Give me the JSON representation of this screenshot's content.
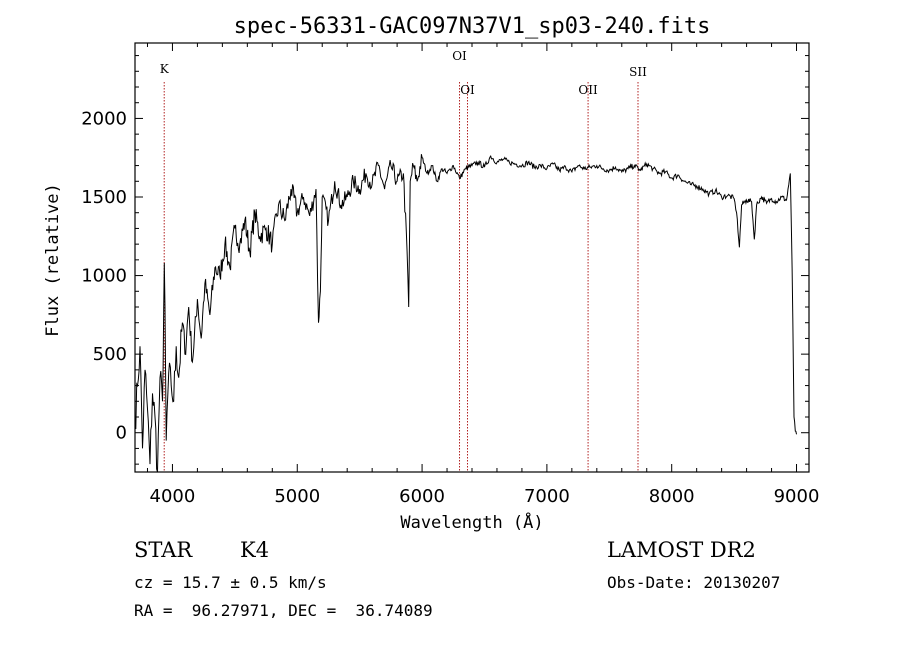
{
  "chart_data": {
    "type": "line",
    "title": "spec-56331-GAC097N37V1_sp03-240.fits",
    "xlabel": "Wavelength (Å)",
    "ylabel": "Flux (relative)",
    "xlim": [
      3700,
      9100
    ],
    "ylim": [
      -250,
      2480
    ],
    "xticks": [
      4000,
      5000,
      6000,
      7000,
      8000,
      9000
    ],
    "yticks": [
      0,
      500,
      1000,
      1500,
      2000
    ],
    "grid": false,
    "series": [
      {
        "x": [
          3700,
          3720,
          3740,
          3760,
          3780,
          3800,
          3820,
          3840,
          3860,
          3880,
          3900,
          3920,
          3935,
          3950,
          3970,
          3990,
          4010,
          4030,
          4050,
          4080,
          4100,
          4130,
          4160,
          4200,
          4230,
          4260,
          4300,
          4340,
          4380,
          4420,
          4460,
          4500,
          4540,
          4580,
          4620,
          4660,
          4700,
          4750,
          4800,
          4850,
          4900,
          4950,
          5000,
          5050,
          5100,
          5150,
          5170,
          5185,
          5200,
          5250,
          5300,
          5350,
          5400,
          5450,
          5500,
          5550,
          5600,
          5650,
          5700,
          5750,
          5800,
          5850,
          5880,
          5893,
          5905,
          5930,
          5960,
          6000,
          6040,
          6080,
          6120,
          6160,
          6200,
          6250,
          6300,
          6350,
          6400,
          6450,
          6500,
          6550,
          6600,
          6650,
          6700,
          6750,
          6800,
          6850,
          6900,
          6950,
          7000,
          7050,
          7100,
          7150,
          7200,
          7250,
          7300,
          7350,
          7400,
          7450,
          7500,
          7550,
          7600,
          7650,
          7700,
          7750,
          7800,
          7850,
          7900,
          7950,
          8000,
          8050,
          8100,
          8150,
          8200,
          8250,
          8300,
          8350,
          8400,
          8450,
          8500,
          8520,
          8542,
          8560,
          8600,
          8640,
          8662,
          8680,
          8720,
          8760,
          8800,
          8840,
          8880,
          8920,
          8950,
          8965,
          8980,
          8990,
          9000
        ],
        "y": [
          50,
          300,
          550,
          -100,
          400,
          150,
          -200,
          250,
          100,
          -250,
          350,
          200,
          1080,
          -50,
          380,
          300,
          200,
          550,
          350,
          700,
          500,
          800,
          450,
          850,
          600,
          950,
          750,
          1050,
          1000,
          1200,
          1050,
          1300,
          1200,
          1350,
          1150,
          1400,
          1250,
          1300,
          1200,
          1450,
          1350,
          1550,
          1400,
          1500,
          1380,
          1550,
          700,
          900,
          1500,
          1350,
          1600,
          1450,
          1500,
          1600,
          1550,
          1650,
          1580,
          1700,
          1550,
          1700,
          1600,
          1650,
          1150,
          800,
          1600,
          1700,
          1600,
          1750,
          1650,
          1700,
          1600,
          1680,
          1650,
          1700,
          1620,
          1680,
          1700,
          1720,
          1690,
          1760,
          1720,
          1740,
          1720,
          1710,
          1700,
          1720,
          1690,
          1700,
          1680,
          1710,
          1670,
          1690,
          1660,
          1700,
          1680,
          1690,
          1700,
          1680,
          1670,
          1690,
          1660,
          1680,
          1700,
          1670,
          1710,
          1680,
          1650,
          1660,
          1620,
          1640,
          1600,
          1580,
          1570,
          1550,
          1520,
          1540,
          1500,
          1510,
          1490,
          1400,
          1180,
          1450,
          1480,
          1470,
          1230,
          1450,
          1500,
          1460,
          1490,
          1470,
          1500,
          1480,
          1650,
          1050,
          100,
          10,
          -10
        ]
      }
    ],
    "lines": [
      {
        "label": "K",
        "x": 3934
      },
      {
        "label": "OI",
        "x": 6300
      },
      {
        "label": "OI",
        "x": 6364
      },
      {
        "label": "OII",
        "x": 7330
      },
      {
        "label": "SII",
        "x": 7730
      }
    ]
  },
  "info": {
    "object_class": "STAR",
    "subclass": "K4",
    "cz": "cz = 15.7 ± 0.5 km/s",
    "coords": "RA =  96.27971, DEC =  36.74089",
    "survey": "LAMOST DR2",
    "obs_date": "Obs-Date: 20130207"
  }
}
